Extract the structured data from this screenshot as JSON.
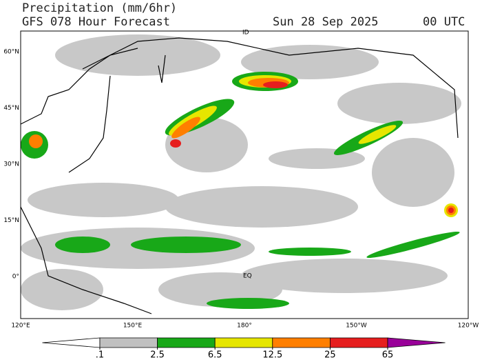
{
  "header": {
    "title": "Precipitation (mm/6hr)",
    "subtitle": "GFS 078 Hour Forecast",
    "date": "Sun 28 Sep 2025",
    "time": "00 UTC"
  },
  "map": {
    "lat_labels": [
      "60°N",
      "45°N",
      "30°N",
      "15°N",
      "0°"
    ],
    "lon_labels": [
      "120°E",
      "150°E",
      "180°",
      "150°W",
      "120°W"
    ],
    "annotations": [
      "EQ",
      "ID"
    ]
  },
  "colorbar": {
    "ticks": [
      {
        "value": 0.1,
        "label": ".1"
      },
      2.5,
      6.5,
      12.5,
      25,
      65
    ],
    "colors": [
      "#ffffff",
      "#c0c0c0",
      "#18a818",
      "#e6e600",
      "#ff7f00",
      "#e61e1e",
      "#990099"
    ]
  }
}
